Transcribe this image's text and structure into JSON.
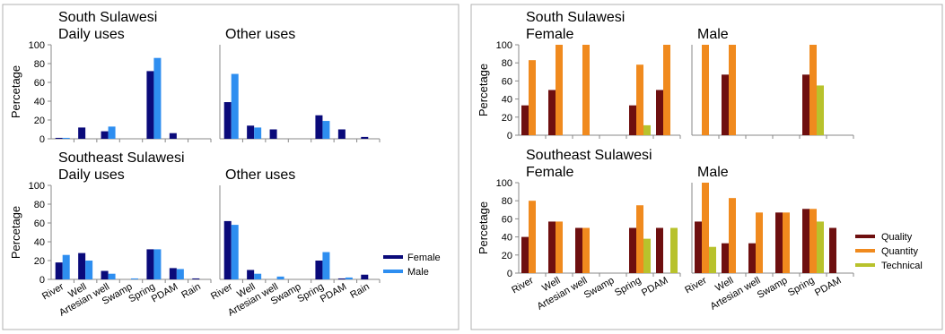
{
  "colors": {
    "female": "#0a0a7a",
    "male": "#2e8ef0",
    "quality": "#6e0f0f",
    "quantity": "#f08a1e",
    "technical": "#b8c22c",
    "axis": "#888888",
    "frame": "#b0b0b0"
  },
  "left_legend": {
    "female": "Female",
    "male": "Male"
  },
  "right_legend": {
    "quality": "Quality",
    "quantity": "Quantity",
    "technical": "Technical"
  },
  "chart_data": [
    {
      "type": "bar",
      "group": "left",
      "row": 0,
      "col": 0,
      "title": "South Sulawesi",
      "subtitle": "Daily uses",
      "ylabel": "Percetage",
      "ylim": [
        0,
        100
      ],
      "yticks": [
        0,
        20,
        40,
        60,
        80,
        100
      ],
      "categories": [
        "River",
        "Well",
        "Artesian well",
        "Swamp",
        "Spring",
        "PDAM",
        "Rain"
      ],
      "show_xticks": false,
      "series": [
        {
          "name": "Female",
          "color_key": "female",
          "values": [
            1,
            12,
            8,
            0,
            72,
            6,
            0
          ]
        },
        {
          "name": "Male",
          "color_key": "male",
          "values": [
            1,
            0,
            13,
            0,
            86,
            0,
            0
          ]
        }
      ]
    },
    {
      "type": "bar",
      "group": "left",
      "row": 0,
      "col": 1,
      "title": "",
      "subtitle": "Other uses",
      "ylabel": "",
      "ylim": [
        0,
        100
      ],
      "yticks": [],
      "categories": [
        "River",
        "Well",
        "Artesian well",
        "Swamp",
        "Spring",
        "PDAM",
        "Rain"
      ],
      "show_xticks": false,
      "series": [
        {
          "name": "Female",
          "color_key": "female",
          "values": [
            39,
            14,
            10,
            0,
            25,
            10,
            2
          ]
        },
        {
          "name": "Male",
          "color_key": "male",
          "values": [
            69,
            12,
            0,
            0,
            19,
            0,
            0
          ]
        }
      ]
    },
    {
      "type": "bar",
      "group": "left",
      "row": 1,
      "col": 0,
      "title": "Southeast Sulawesi",
      "subtitle": "Daily uses",
      "ylabel": "Percetage",
      "ylim": [
        0,
        100
      ],
      "yticks": [
        0,
        20,
        40,
        60,
        80,
        100
      ],
      "categories": [
        "River",
        "Well",
        "Artesian well",
        "Swamp",
        "Spring",
        "PDAM",
        "Rain"
      ],
      "show_xticks": true,
      "series": [
        {
          "name": "Female",
          "color_key": "female",
          "values": [
            18,
            28,
            9,
            0,
            32,
            12,
            1
          ]
        },
        {
          "name": "Male",
          "color_key": "male",
          "values": [
            26,
            20,
            6,
            1,
            32,
            11,
            0
          ]
        }
      ]
    },
    {
      "type": "bar",
      "group": "left",
      "row": 1,
      "col": 1,
      "title": "",
      "subtitle": "Other uses",
      "ylabel": "",
      "ylim": [
        0,
        100
      ],
      "yticks": [],
      "categories": [
        "River",
        "Well",
        "Artesian well",
        "Swamp",
        "Spring",
        "PDAM",
        "Rain"
      ],
      "show_xticks": true,
      "series": [
        {
          "name": "Female",
          "color_key": "female",
          "values": [
            62,
            10,
            0,
            0,
            20,
            1,
            5
          ]
        },
        {
          "name": "Male",
          "color_key": "male",
          "values": [
            58,
            6,
            3,
            0,
            29,
            2,
            0
          ]
        }
      ]
    },
    {
      "type": "bar",
      "group": "right",
      "row": 0,
      "col": 0,
      "title": "South Sulawesi",
      "subtitle": "Female",
      "ylabel": "Percetage",
      "ylim": [
        0,
        100
      ],
      "yticks": [
        0,
        20,
        40,
        60,
        80,
        100
      ],
      "categories": [
        "River",
        "Well",
        "Artesian well",
        "Swamp",
        "Spring",
        "PDAM"
      ],
      "show_xticks": false,
      "series": [
        {
          "name": "Quality",
          "color_key": "quality",
          "values": [
            33,
            50,
            0,
            0,
            33,
            50
          ]
        },
        {
          "name": "Quantity",
          "color_key": "quantity",
          "values": [
            83,
            100,
            100,
            0,
            78,
            100
          ]
        },
        {
          "name": "Technical",
          "color_key": "technical",
          "values": [
            0,
            0,
            0,
            0,
            11,
            0
          ]
        }
      ]
    },
    {
      "type": "bar",
      "group": "right",
      "row": 0,
      "col": 1,
      "title": "",
      "subtitle": "Male",
      "ylabel": "",
      "ylim": [
        0,
        100
      ],
      "yticks": [],
      "categories": [
        "River",
        "Well",
        "Artesian well",
        "Swamp",
        "Spring",
        "PDAM"
      ],
      "show_xticks": false,
      "series": [
        {
          "name": "Quality",
          "color_key": "quality",
          "values": [
            0,
            67,
            0,
            0,
            67,
            0
          ]
        },
        {
          "name": "Quantity",
          "color_key": "quantity",
          "values": [
            100,
            100,
            0,
            0,
            100,
            0
          ]
        },
        {
          "name": "Technical",
          "color_key": "technical",
          "values": [
            0,
            0,
            0,
            0,
            55,
            0
          ]
        }
      ]
    },
    {
      "type": "bar",
      "group": "right",
      "row": 1,
      "col": 0,
      "title": "Southeast Sulawesi",
      "subtitle": "Female",
      "ylabel": "Percetage",
      "ylim": [
        0,
        100
      ],
      "yticks": [
        0,
        20,
        40,
        60,
        80,
        100
      ],
      "categories": [
        "River",
        "Well",
        "Artesian well",
        "Swamp",
        "Spring",
        "PDAM"
      ],
      "show_xticks": true,
      "series": [
        {
          "name": "Quality",
          "color_key": "quality",
          "values": [
            40,
            57,
            50,
            0,
            50,
            50
          ]
        },
        {
          "name": "Quantity",
          "color_key": "quantity",
          "values": [
            80,
            57,
            50,
            0,
            75,
            0
          ]
        },
        {
          "name": "Technical",
          "color_key": "technical",
          "values": [
            0,
            0,
            0,
            0,
            38,
            50
          ]
        }
      ]
    },
    {
      "type": "bar",
      "group": "right",
      "row": 1,
      "col": 1,
      "title": "",
      "subtitle": "Male",
      "ylabel": "",
      "ylim": [
        0,
        100
      ],
      "yticks": [],
      "categories": [
        "River",
        "Well",
        "Artesian well",
        "Swamp",
        "Spring",
        "PDAM"
      ],
      "show_xticks": true,
      "series": [
        {
          "name": "Quality",
          "color_key": "quality",
          "values": [
            57,
            33,
            33,
            67,
            71,
            50
          ]
        },
        {
          "name": "Quantity",
          "color_key": "quantity",
          "values": [
            100,
            83,
            67,
            67,
            71,
            0
          ]
        },
        {
          "name": "Technical",
          "color_key": "technical",
          "values": [
            29,
            0,
            0,
            0,
            57,
            0
          ]
        }
      ]
    }
  ]
}
